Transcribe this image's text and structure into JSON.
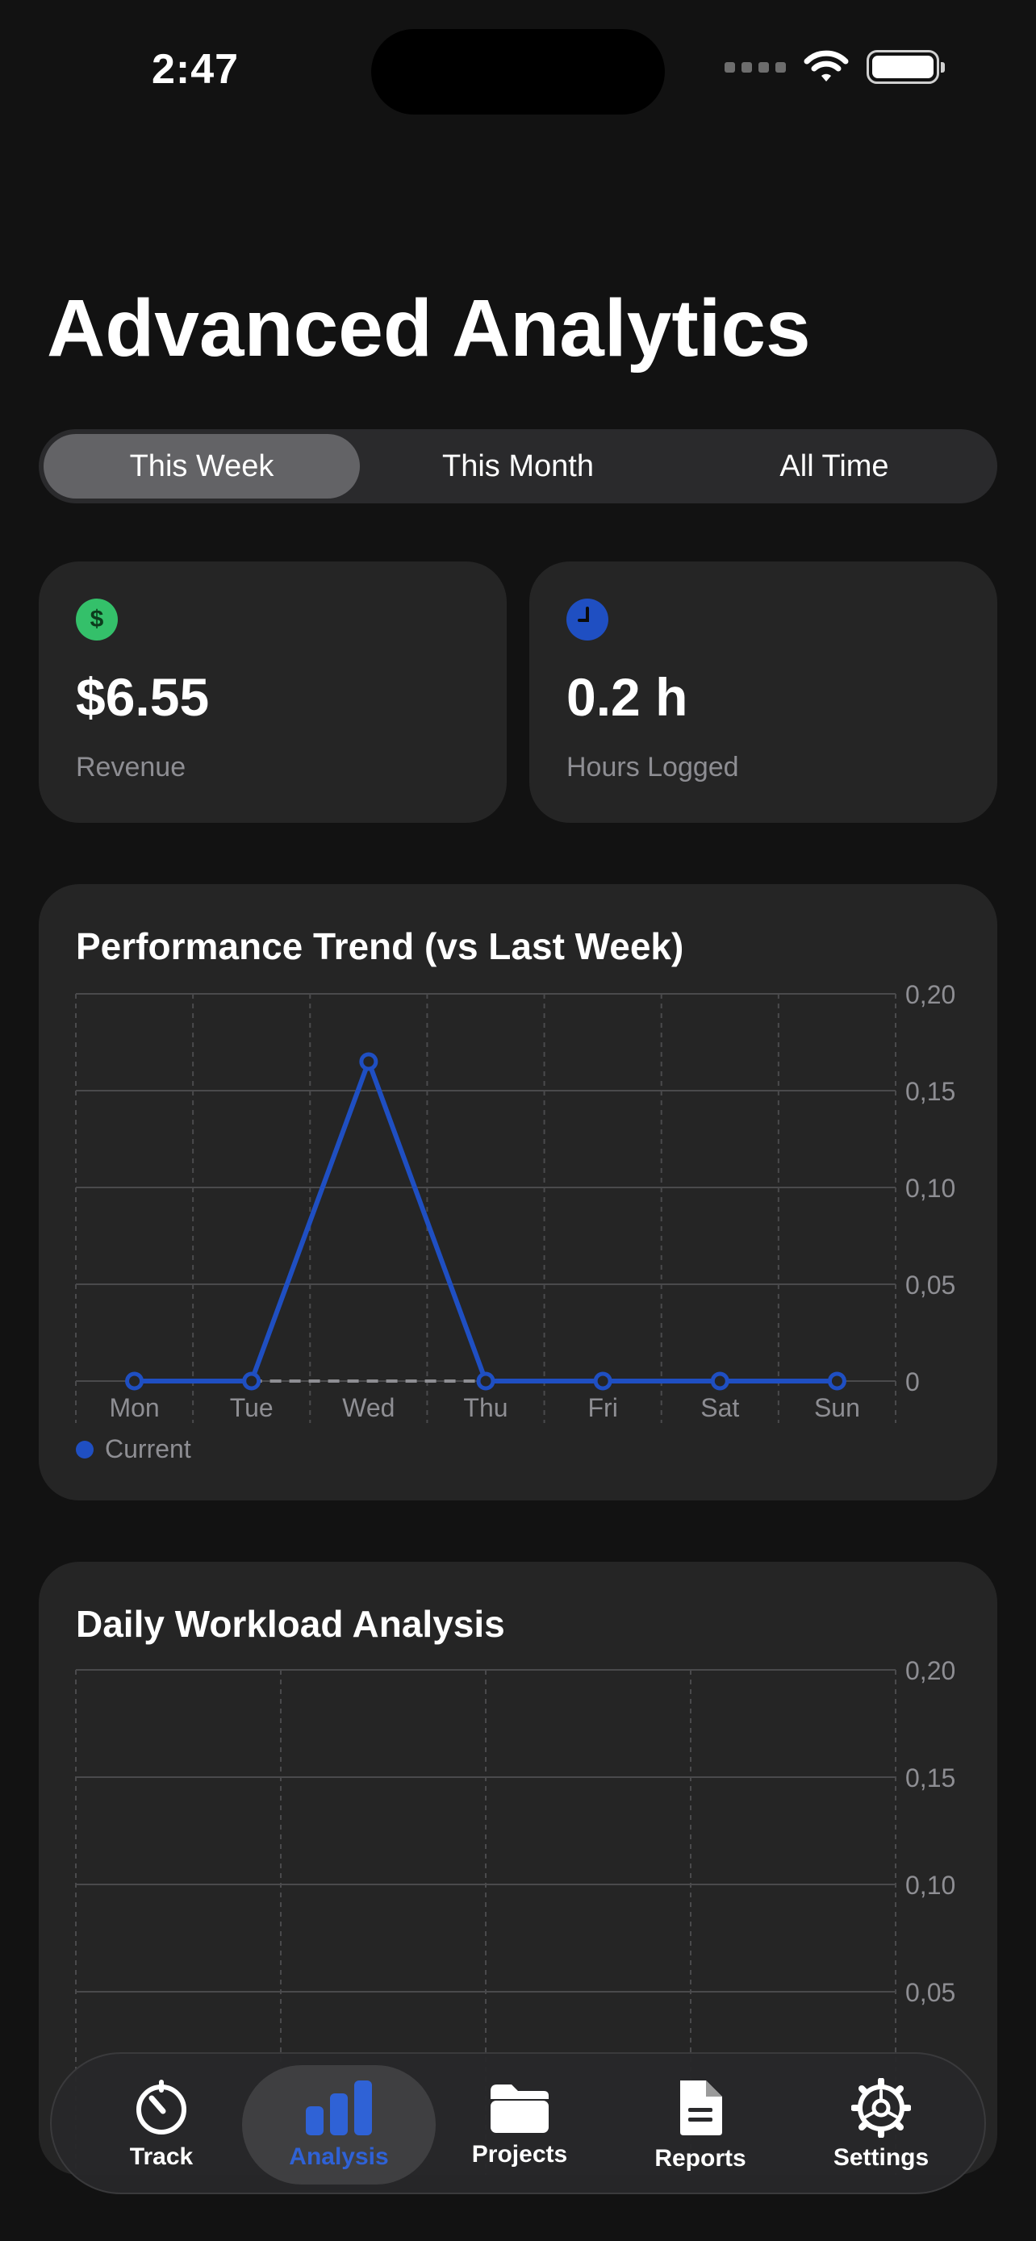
{
  "status_bar": {
    "time": "2:47"
  },
  "page_title": "Advanced Analytics",
  "segments": [
    {
      "label": "This Week",
      "active": true
    },
    {
      "label": "This Month",
      "active": false
    },
    {
      "label": "All Time",
      "active": false
    }
  ],
  "stats": {
    "revenue": {
      "value": "$6.55",
      "label": "Revenue",
      "icon": "dollar-icon",
      "color": "#34c06a"
    },
    "hours": {
      "value": "0.2 h",
      "label": "Hours Logged",
      "icon": "clock-icon",
      "color": "#1f4fc2"
    }
  },
  "trend_chart": {
    "title": "Performance Trend (vs Last Week)",
    "legend": "Current"
  },
  "workload_chart": {
    "title": "Daily Workload Analysis"
  },
  "chart_data": [
    {
      "type": "line",
      "title": "Performance Trend (vs Last Week)",
      "categories": [
        "Mon",
        "Tue",
        "Wed",
        "Thu",
        "Fri",
        "Sat",
        "Sun"
      ],
      "series": [
        {
          "name": "Current",
          "values": [
            0,
            0,
            0.165,
            0,
            0,
            0,
            0
          ],
          "color": "#1f4fc2"
        },
        {
          "values": [
            0,
            0,
            0,
            0,
            0,
            0,
            0
          ],
          "color": "#8e8e93",
          "dashed": true
        }
      ],
      "yticks": [
        "0",
        "0,05",
        "0,10",
        "0,15",
        "0,20"
      ],
      "ylim": [
        0,
        0.2
      ],
      "grid": true,
      "legend": "bottom-left"
    },
    {
      "type": "bar",
      "title": "Daily Workload Analysis",
      "yticks": [
        "0,05",
        "0,10",
        "0,15",
        "0,20"
      ],
      "ylim": [
        0,
        0.2
      ],
      "grid": true
    }
  ],
  "tabs": [
    {
      "label": "Track",
      "icon": "timer-icon",
      "active": false
    },
    {
      "label": "Analysis",
      "icon": "bar-chart-icon",
      "active": true
    },
    {
      "label": "Projects",
      "icon": "folder-icon",
      "active": false
    },
    {
      "label": "Reports",
      "icon": "document-icon",
      "active": false
    },
    {
      "label": "Settings",
      "icon": "gear-icon",
      "active": false
    }
  ]
}
